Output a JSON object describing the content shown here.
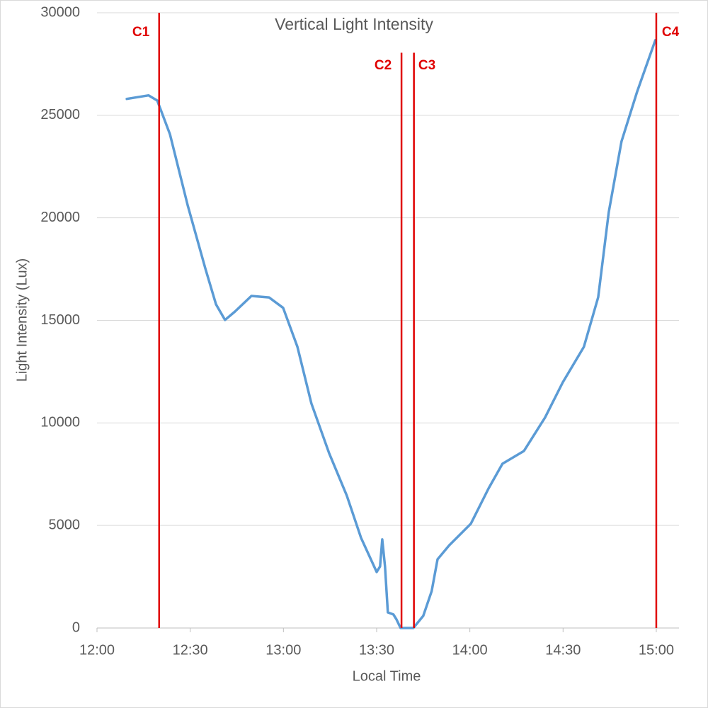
{
  "chart_data": {
    "type": "line",
    "title": "Vertical Light Intensity",
    "x_label": "Local Time",
    "y_label": "Light Intensity (Lux)",
    "x": [
      729.6,
      736.6,
      739.4,
      743.5,
      749.2,
      754.9,
      758.3,
      761.2,
      764.4,
      769.7,
      775.4,
      779.9,
      784.5,
      789.0,
      794.7,
      800.4,
      805.0,
      810.0,
      811.1,
      811.8,
      812.7,
      813.6,
      815.4,
      816.4,
      817.7,
      821.8,
      825.0,
      827.7,
      829.6,
      833.4,
      840.3,
      846.0,
      850.5,
      857.4,
      864.2,
      869.9,
      876.7,
      881.3,
      884.7,
      888.8,
      893.8,
      899.7
    ],
    "series": [
      {
        "name": "Vertical Light Intensity",
        "color": "#5b9bd5",
        "values": [
          25800,
          25970,
          25720,
          24070,
          20610,
          17510,
          15780,
          15020,
          15430,
          16190,
          16120,
          15610,
          13710,
          10950,
          8530,
          6460,
          4390,
          2730,
          3000,
          4320,
          3000,
          760,
          660,
          410,
          0,
          0,
          590,
          1800,
          3350,
          4040,
          5080,
          6800,
          8010,
          8630,
          10260,
          11980,
          13710,
          16130,
          20270,
          23720,
          26140,
          28660
        ]
      }
    ],
    "xlim": [
      720,
      907.3
    ],
    "xticks": [
      {
        "value": 720,
        "label": "12:00"
      },
      {
        "value": 750,
        "label": "12:30"
      },
      {
        "value": 780,
        "label": "13:00"
      },
      {
        "value": 810,
        "label": "13:30"
      },
      {
        "value": 840,
        "label": "14:00"
      },
      {
        "value": 870,
        "label": "14:30"
      },
      {
        "value": 900,
        "label": "15:00"
      }
    ],
    "ylim": [
      0,
      30000
    ],
    "yticks": [
      0,
      5000,
      10000,
      15000,
      20000,
      25000,
      30000
    ],
    "grid": true,
    "markers": [
      {
        "label": "C1",
        "x": 740,
        "top": 30000,
        "color": "#e00000"
      },
      {
        "label": "C2",
        "x": 818,
        "top": 28050,
        "color": "#e00000"
      },
      {
        "label": "C3",
        "x": 822,
        "top": 28050,
        "color": "#e00000"
      },
      {
        "label": "C4",
        "x": 900,
        "top": 30000,
        "color": "#e00000"
      }
    ]
  }
}
